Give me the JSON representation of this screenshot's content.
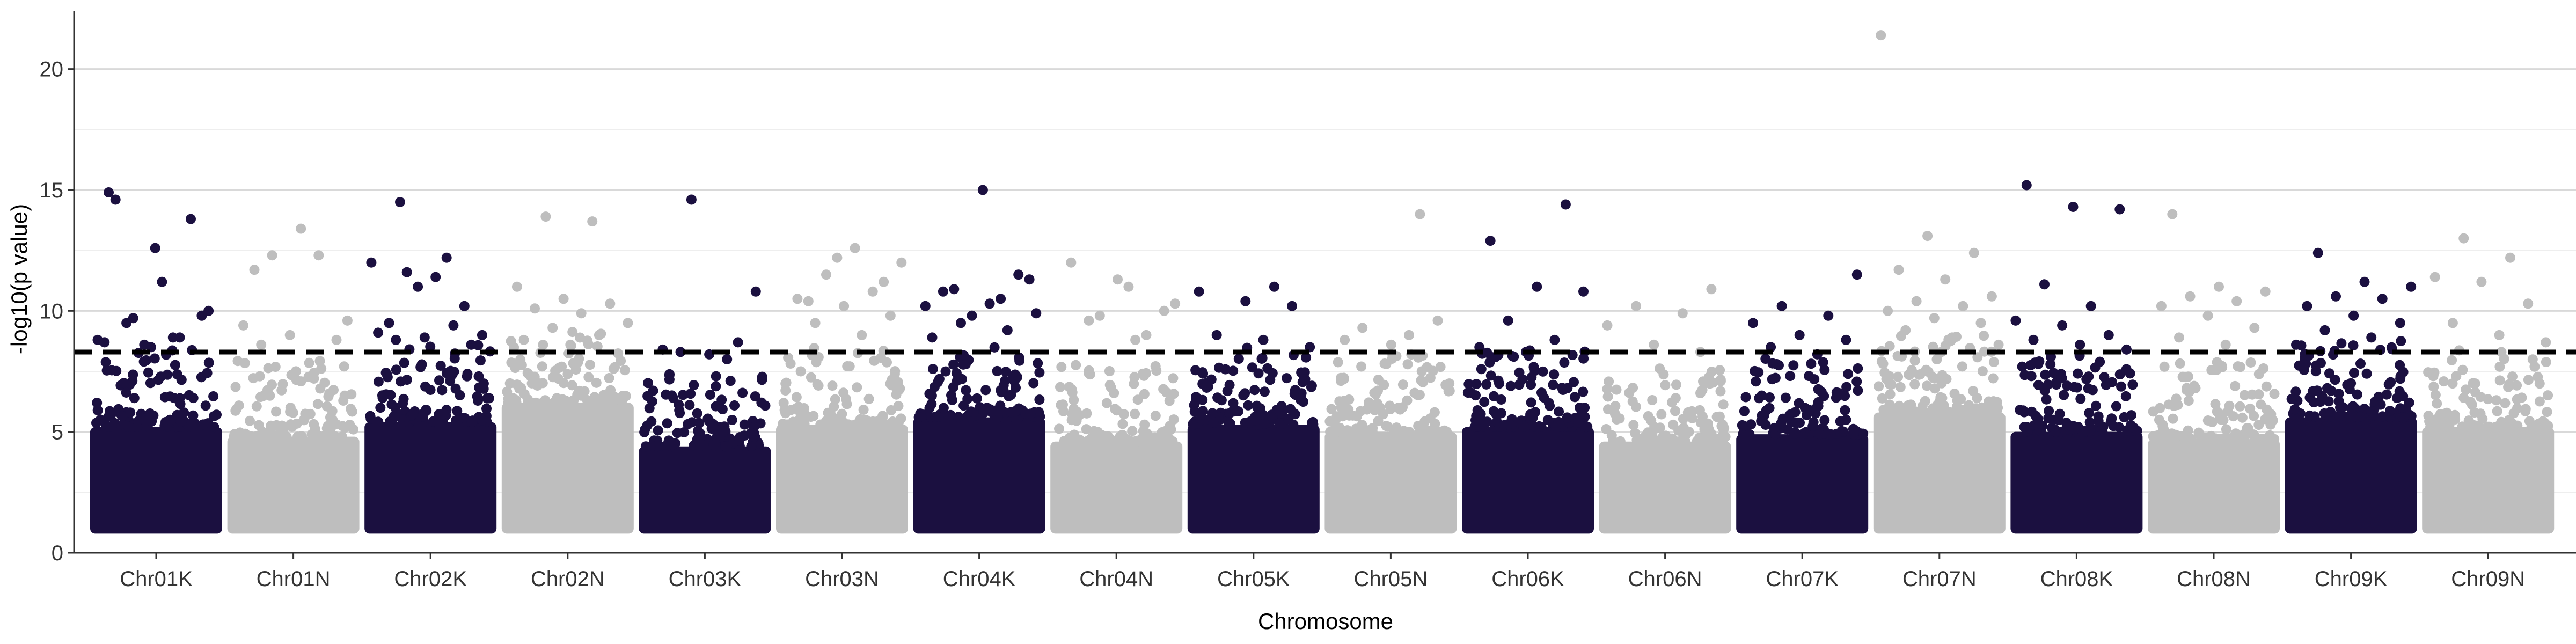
{
  "chart_data": {
    "type": "scatter",
    "subtype": "manhattan",
    "xlabel": "Chromosome",
    "ylabel": "-log10(p value)",
    "ylim": [
      0,
      22.3
    ],
    "yticks": [
      0,
      5,
      10,
      15,
      20
    ],
    "grid": "horizontal",
    "legend": "none",
    "threshold": 8.3,
    "colors": {
      "odd": "#1b1040",
      "even": "#bebebe",
      "threshold": "#000000",
      "grid": "#d9d9d9"
    },
    "chromosomes": [
      {
        "name": "Chr01K",
        "band_max": 5.2,
        "high_points": [
          14.9,
          12.6,
          9.8,
          9.5,
          8.9,
          8.8,
          8.6,
          13.8,
          14.6,
          11.2,
          10.0,
          9.7,
          8.9,
          8.7,
          8.5
        ]
      },
      {
        "name": "Chr01N",
        "band_max": 4.8,
        "high_points": [
          11.7,
          13.4,
          9.6,
          12.3,
          12.3,
          9.4,
          9.0,
          8.8,
          8.6
        ]
      },
      {
        "name": "Chr02K",
        "band_max": 5.4,
        "high_points": [
          14.5,
          12.2,
          12.0,
          11.0,
          10.2,
          9.5,
          11.4,
          9.0,
          11.6,
          9.4,
          9.1,
          8.9,
          8.6,
          8.8
        ]
      },
      {
        "name": "Chr02N",
        "band_max": 6.2,
        "high_points": [
          13.9,
          13.7,
          11.0,
          10.5,
          10.3,
          10.1,
          9.9,
          9.5,
          9.3,
          9.0,
          8.8,
          8.6
        ]
      },
      {
        "name": "Chr03K",
        "band_max": 4.4,
        "high_points": [
          14.6,
          8.7,
          8.4,
          8.2,
          10.8,
          8.3,
          8.0
        ]
      },
      {
        "name": "Chr03N",
        "band_max": 5.3,
        "high_points": [
          12.2,
          11.2,
          10.4,
          12.6,
          12.0,
          11.5,
          10.8,
          10.5,
          10.2,
          9.8,
          9.5,
          9.0
        ]
      },
      {
        "name": "Chr04K",
        "band_max": 5.6,
        "high_points": [
          15.0,
          11.3,
          10.9,
          10.5,
          10.2,
          9.8,
          11.5,
          10.8,
          10.3,
          9.9,
          9.5,
          9.2,
          8.9
        ]
      },
      {
        "name": "Chr04N",
        "band_max": 4.6,
        "high_points": [
          11.0,
          10.3,
          9.8,
          9.0,
          12.0,
          11.3,
          10.0,
          9.6,
          8.8
        ]
      },
      {
        "name": "Chr05K",
        "band_max": 5.3,
        "high_points": [
          11.0,
          10.8,
          10.4,
          10.2,
          9.0,
          8.8,
          8.5
        ]
      },
      {
        "name": "Chr05N",
        "band_max": 5.0,
        "high_points": [
          14.0,
          8.8,
          8.6,
          9.6,
          9.3,
          9.0
        ]
      },
      {
        "name": "Chr06K",
        "band_max": 5.2,
        "high_points": [
          14.4,
          12.9,
          11.0,
          10.8,
          9.6,
          8.8,
          8.5,
          8.3
        ]
      },
      {
        "name": "Chr06N",
        "band_max": 4.6,
        "high_points": [
          10.9,
          10.2,
          9.9,
          9.4,
          8.6,
          8.3
        ]
      },
      {
        "name": "Chr07K",
        "band_max": 4.9,
        "high_points": [
          11.5,
          10.2,
          9.8,
          9.5,
          9.0,
          8.8,
          8.5,
          8.2
        ]
      },
      {
        "name": "Chr07N",
        "band_max": 5.8,
        "high_points": [
          21.4,
          13.1,
          12.4,
          11.7,
          11.3,
          10.6,
          10.4,
          10.2,
          10.0,
          9.7,
          9.5,
          9.2,
          8.9,
          8.6
        ]
      },
      {
        "name": "Chr08K",
        "band_max": 5.0,
        "high_points": [
          15.2,
          14.3,
          14.2,
          11.1,
          10.2,
          9.6,
          9.4,
          9.0,
          8.8,
          8.6,
          8.4
        ]
      },
      {
        "name": "Chr08N",
        "band_max": 4.7,
        "high_points": [
          14.0,
          11.0,
          10.8,
          10.6,
          10.4,
          10.2,
          9.8,
          9.3,
          8.9,
          8.6
        ]
      },
      {
        "name": "Chr09K",
        "band_max": 5.6,
        "high_points": [
          12.4,
          11.2,
          11.0,
          10.6,
          10.5,
          10.2,
          9.8,
          9.5,
          9.2,
          8.9,
          8.6
        ]
      },
      {
        "name": "Chr09N",
        "band_max": 5.2,
        "high_points": [
          13.0,
          12.2,
          11.4,
          11.2,
          10.3,
          9.5,
          9.0,
          8.7
        ]
      }
    ]
  }
}
